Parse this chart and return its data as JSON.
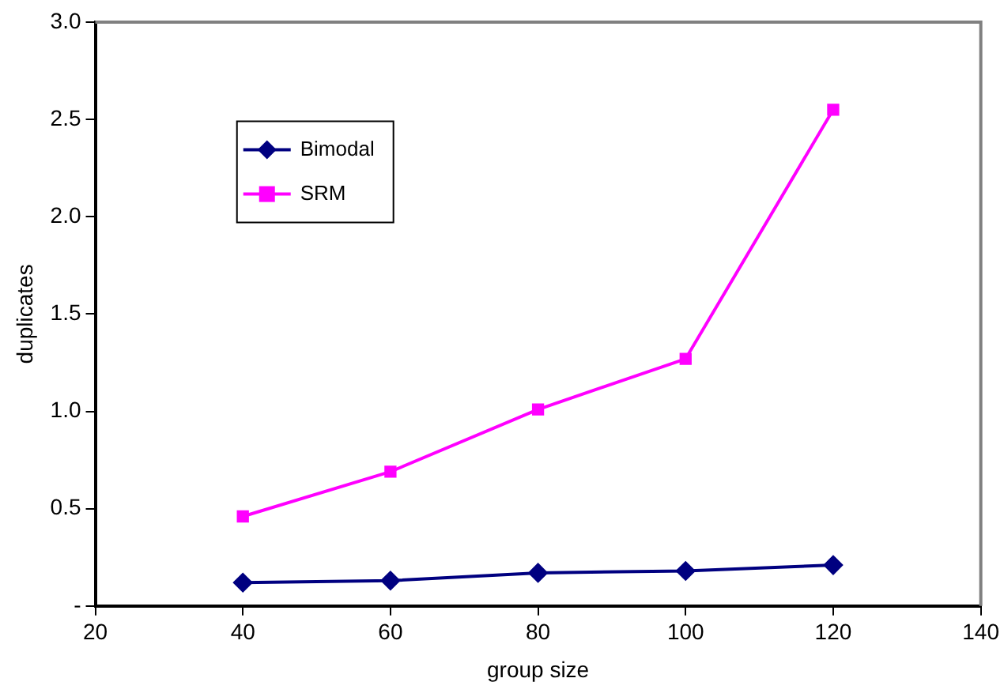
{
  "chart_data": {
    "type": "line",
    "xlabel": "group size",
    "ylabel": "duplicates",
    "x": [
      40,
      60,
      80,
      100,
      120
    ],
    "series": [
      {
        "name": "Bimodal",
        "color": "#000080",
        "marker": "diamond",
        "values": [
          0.12,
          0.13,
          0.17,
          0.18,
          0.21
        ]
      },
      {
        "name": "SRM",
        "color": "#ff00ff",
        "marker": "square",
        "values": [
          0.46,
          0.69,
          1.01,
          1.27,
          2.55
        ]
      }
    ],
    "xlim": [
      20,
      140
    ],
    "xticks": [
      20,
      40,
      60,
      80,
      100,
      120,
      140
    ],
    "ylim": [
      0,
      3.0
    ],
    "yticks": [
      {
        "value": 0,
        "label": "-"
      },
      {
        "value": 0.5,
        "label": "0.5"
      },
      {
        "value": 1.0,
        "label": "1.0"
      },
      {
        "value": 1.5,
        "label": "1.5"
      },
      {
        "value": 2.0,
        "label": "2.0"
      },
      {
        "value": 2.5,
        "label": "2.5"
      },
      {
        "value": 3.0,
        "label": "3.0"
      }
    ],
    "grid": false,
    "legend": "top left",
    "line_style": "solid"
  }
}
